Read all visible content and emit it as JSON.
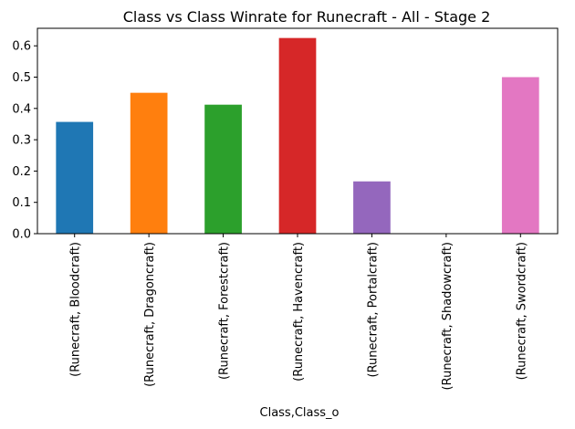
{
  "chart_data": {
    "type": "bar",
    "title": "Class vs Class Winrate for Runecraft - All - Stage 2",
    "xlabel": "Class,Class_o",
    "ylabel": "",
    "categories": [
      "(Runecraft, Bloodcraft)",
      "(Runecraft, Dragoncraft)",
      "(Runecraft, Forestcraft)",
      "(Runecraft, Havencraft)",
      "(Runecraft, Portalcraft)",
      "(Runecraft, Shadowcraft)",
      "(Runecraft, Swordcraft)"
    ],
    "values": [
      0.357,
      0.45,
      0.412,
      0.625,
      0.167,
      0.0,
      0.5
    ],
    "colors": [
      "#1f77b4",
      "#ff7f0e",
      "#2ca02c",
      "#d62728",
      "#9467bd",
      "#8c564b",
      "#e377c2"
    ],
    "yticks": [
      "0.0",
      "0.1",
      "0.2",
      "0.3",
      "0.4",
      "0.5",
      "0.6"
    ],
    "ylim": [
      0,
      0.656
    ],
    "grid": false,
    "legend": "none"
  }
}
